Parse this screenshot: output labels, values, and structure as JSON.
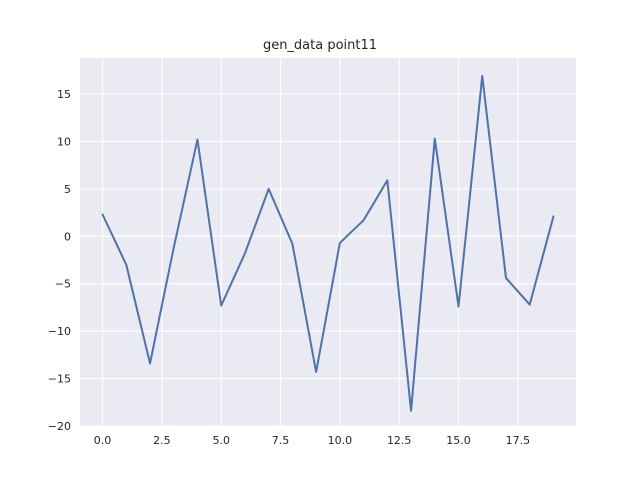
{
  "chart_data": {
    "type": "line",
    "title": "gen_data point11",
    "xlabel": "",
    "ylabel": "",
    "xlim": [
      -0.95,
      19.95
    ],
    "ylim": [
      -20,
      18.8
    ],
    "xticks": [
      0.0,
      2.5,
      5.0,
      7.5,
      10.0,
      12.5,
      15.0,
      17.5
    ],
    "xtick_labels": [
      "0.0",
      "2.5",
      "5.0",
      "7.5",
      "10.0",
      "12.5",
      "15.0",
      "17.5"
    ],
    "yticks": [
      -20,
      -15,
      -10,
      -5,
      0,
      5,
      10,
      15
    ],
    "ytick_labels": [
      "−20",
      "−15",
      "−10",
      "−5",
      "0",
      "5",
      "10",
      "15"
    ],
    "grid": true,
    "background": "#eaeaf2",
    "grid_color": "#ffffff",
    "series": [
      {
        "color": "#4c72b0",
        "x": [
          0,
          1,
          2,
          3,
          4,
          5,
          6,
          7,
          8,
          9,
          10,
          11,
          12,
          13,
          14,
          15,
          16,
          17,
          18,
          19
        ],
        "y": [
          2.3,
          -3.0,
          -13.4,
          -1.2,
          10.2,
          -7.3,
          -1.8,
          5.0,
          -0.8,
          -14.3,
          -0.7,
          1.7,
          5.9,
          -18.4,
          10.3,
          -7.4,
          16.9,
          -4.4,
          -7.2,
          2.1
        ]
      }
    ]
  }
}
